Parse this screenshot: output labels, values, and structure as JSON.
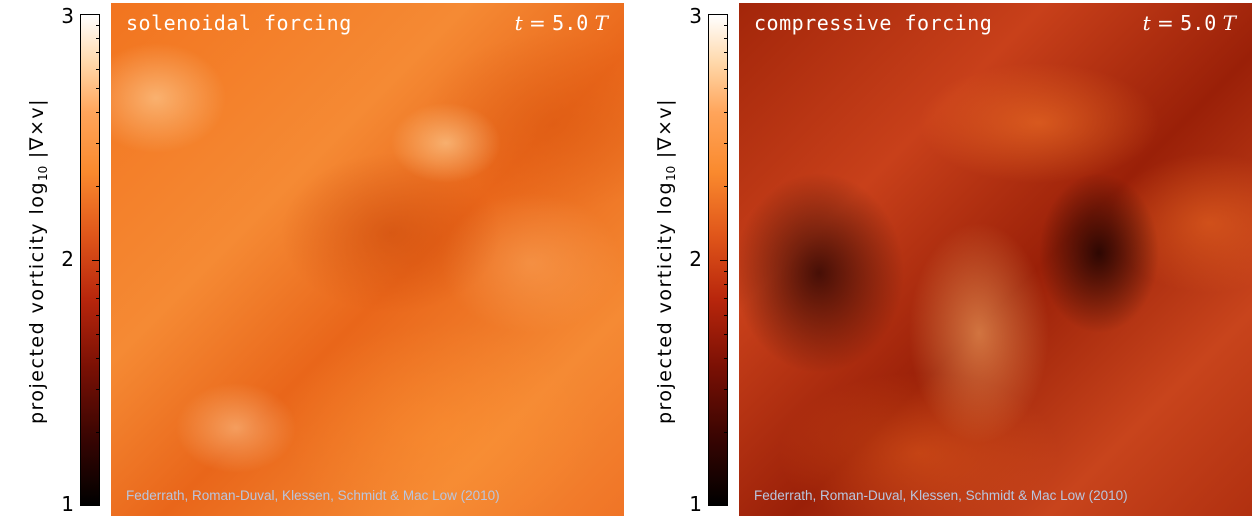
{
  "colorbar": {
    "title_prefix": "projected vorticity   log",
    "title_subscript": "10",
    "title_suffix": "  |∇×v|",
    "ticks": [
      "3",
      "2",
      "1"
    ],
    "gradient_colors": [
      "#ffffff",
      "#ffa45a",
      "#e0561a",
      "#7a1004",
      "#000000"
    ]
  },
  "panels": [
    {
      "title": "solenoidal forcing",
      "time_var": "t",
      "time_eq": " =  ",
      "time_value": "5.0",
      "time_unit": "T",
      "credit": "Federrath, Roman-Duval, Klessen, Schmidt & Mac Low (2010)"
    },
    {
      "title": "compressive forcing",
      "time_var": "t",
      "time_eq": " =  ",
      "time_value": "5.0",
      "time_unit": "T",
      "credit": "Federrath, Roman-Duval, Klessen, Schmidt & Mac Low (2010)"
    }
  ]
}
